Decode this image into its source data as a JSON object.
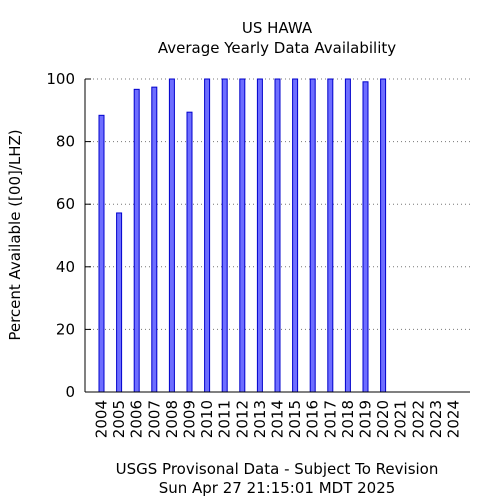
{
  "chart_data": {
    "type": "bar",
    "title": "US HAWA",
    "subtitle": "Average Yearly Data Availability",
    "xlabel": "",
    "ylabel": "Percent Available ([00]/LHZ)",
    "categories": [
      "2004",
      "2005",
      "2006",
      "2007",
      "2008",
      "2009",
      "2010",
      "2011",
      "2012",
      "2013",
      "2014",
      "2015",
      "2016",
      "2017",
      "2018",
      "2019",
      "2020",
      "2021",
      "2022",
      "2023",
      "2024"
    ],
    "values": [
      88.4,
      57.2,
      96.7,
      97.4,
      100,
      89.4,
      100,
      100,
      100,
      100,
      100,
      100,
      100,
      100,
      100,
      99.1,
      100,
      0,
      0,
      0,
      0
    ],
    "ylim": [
      0,
      100
    ],
    "yticks": [
      0,
      20,
      40,
      60,
      80,
      100
    ],
    "grid": true,
    "legend": "none",
    "bar_fill": "#6e6eff",
    "bar_stroke": "#0000cc"
  },
  "footer": {
    "line1": "USGS Provisonal Data - Subject To Revision",
    "line2": "Sun Apr 27 21:15:01 MDT 2025"
  }
}
